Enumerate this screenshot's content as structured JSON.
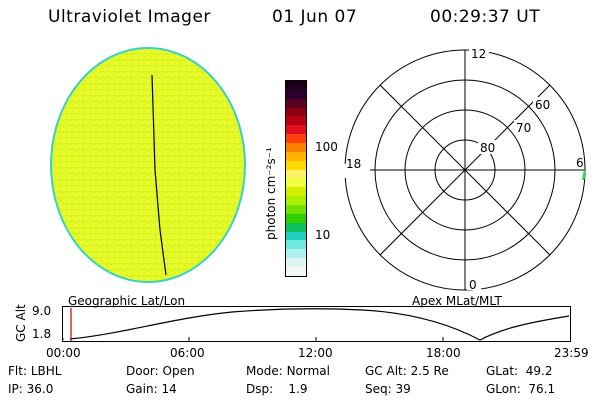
{
  "header": {
    "instrument": "Ultraviolet Imager",
    "date": "01 Jun 07",
    "time": "00:29:37 UT"
  },
  "colorbar": {
    "label": "photon cm⁻²s⁻¹",
    "ticks": [
      "100",
      "10"
    ],
    "colors": [
      "#1a001a",
      "#2a0030",
      "#5a0020",
      "#8a0010",
      "#b80010",
      "#e01020",
      "#ff4010",
      "#ff8000",
      "#ffb400",
      "#ffdc00",
      "#fff26a",
      "#f0ff40",
      "#d0f000",
      "#aaf000",
      "#70e000",
      "#30d000",
      "#10c060",
      "#20d0c0",
      "#70e8e0",
      "#b0eef0",
      "#e0f4f4",
      "#f2f6f6"
    ]
  },
  "polar": {
    "labels": {
      "top": "12",
      "bottom": "0",
      "left": "18",
      "right": "6"
    },
    "ring_labels": [
      "60",
      "70",
      "80"
    ]
  },
  "projections": {
    "left": "Geographic Lat/Lon",
    "right": "Apex MLat/MLT"
  },
  "altitude_plot": {
    "ylabel": "GC Alt",
    "ymax": "9.0",
    "ymin": "1.8",
    "xticks": [
      "00:00",
      "06:00",
      "12:00",
      "18:00",
      "23:59"
    ]
  },
  "status": {
    "row1": [
      {
        "label": "Flt:",
        "value": "LBHL"
      },
      {
        "label": "Door:",
        "value": "Open"
      },
      {
        "label": "Mode:",
        "value": "Normal"
      },
      {
        "label": "GC Alt:",
        "value": "2.5 Re"
      },
      {
        "label": "GLat:",
        "value": "49.2"
      }
    ],
    "row2": [
      {
        "label": "IP:",
        "value": "36.0"
      },
      {
        "label": "Gain:",
        "value": "14"
      },
      {
        "label": "Dsp:",
        "value": "1.9"
      },
      {
        "label": "Seq:",
        "value": "39"
      },
      {
        "label": "GLon:",
        "value": "76.1"
      }
    ]
  }
}
